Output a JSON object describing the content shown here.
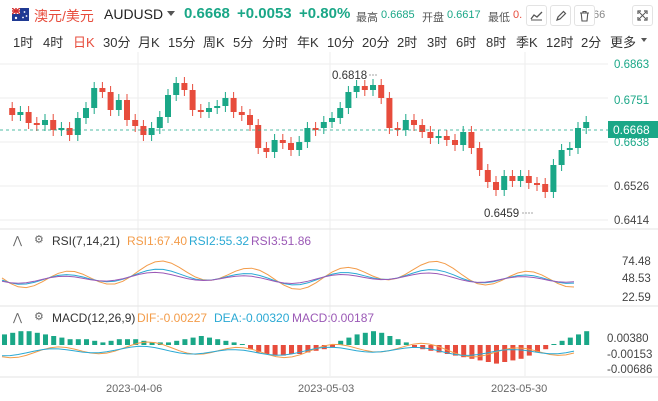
{
  "header": {
    "symbol_cn": "澳元/美元",
    "symbol_en": "AUDUSD",
    "price": "0.6668",
    "change": "+0.0053",
    "change_pct": "+0.80%",
    "high_label": "最高",
    "high_value": "0.6685",
    "open_label": "开盘",
    "open_value": "0.6617",
    "low_label": "最低",
    "low_value": "0.",
    "hidden_tail": "66",
    "tool_icons": [
      "indicator-icon",
      "draw-pencil-icon",
      "trash-icon",
      "expand-icon"
    ]
  },
  "periods": {
    "items": [
      "1时",
      "4时",
      "日K",
      "30分",
      "月K",
      "15分",
      "周K",
      "5分",
      "分时",
      "年K",
      "10分",
      "20分",
      "2时",
      "3时",
      "6时",
      "8时",
      "季K",
      "12时",
      "2分",
      "更多"
    ],
    "active": "日K"
  },
  "colors": {
    "up": "#1aa787",
    "down": "#e74c3c",
    "rsi1": "#f39c4a",
    "rsi2": "#2aa9d4",
    "rsi3": "#9b59b6",
    "dif": "#f39c4a",
    "dea": "#2aa9d4",
    "current_line": "#1aa787"
  },
  "chart_data": {
    "type": "candlestick",
    "main": {
      "y_ticks": [
        "0.6863",
        "0.6751",
        "0.6638",
        "0.6526",
        "0.6414"
      ],
      "current_price_label": "0.6668",
      "high_annotation": "0.6818",
      "low_annotation": "0.6459",
      "x_labels": [
        "2023-04-06",
        "2023-05-03",
        "2023-05-30"
      ]
    },
    "rsi": {
      "title": "RSI(7,14,21)",
      "rsi1_label": "RSI1:67.40",
      "rsi2_label": "RSI2:55.32",
      "rsi3_label": "RSI3:51.86",
      "y_ticks": [
        "74.48",
        "48.53",
        "22.59"
      ]
    },
    "macd": {
      "title": "MACD(12,26,9)",
      "dif_label": "DIF:-0.00227",
      "dea_label": "DEA:-0.00320",
      "macd_label": "MACD:0.00187",
      "y_ticks": [
        "0.00380",
        "-0.00153",
        "-0.00686"
      ]
    }
  }
}
